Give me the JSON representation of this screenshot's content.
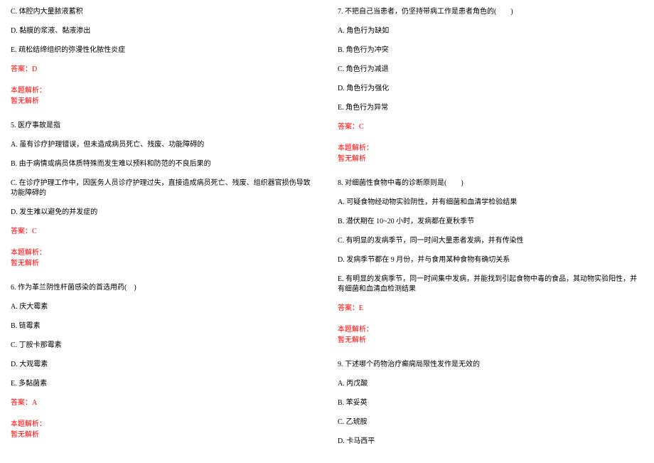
{
  "left_column": {
    "q4_tail": {
      "options": [
        "C. 体腔内大量脓液蓄积",
        "D. 黏膜的浆液、黏液渗出",
        "E. 疏松结缔组织的弥漫性化脓性炎症"
      ],
      "answer": "答案：D",
      "analysis_label": "本题解析：",
      "analysis_content": "暂无解析"
    },
    "q5": {
      "stem": "5. 医疗事故是指",
      "options": [
        "A. 虽有诊疗护理错误，但未造成病员死亡、残废、功能障碍的",
        "B. 由于病情或病员体质特殊而发生难以预料和防范的不良后果的",
        "C. 在诊疗护理工作中，因医务人员诊疗护理过失，直接造成病员死亡、残废、组织器官损伤导致功能障碍的",
        "D. 发生难以避免的并发症的"
      ],
      "answer": "答案：C",
      "analysis_label": "本题解析：",
      "analysis_content": "暂无解析"
    },
    "q6": {
      "stem": "6. 作为革兰阴性杆菌感染的首选用药(　)",
      "options": [
        "A. 庆大霉素",
        "B. 链霉素",
        "C. 丁胺卡那霉素",
        "D. 大观霉素",
        "E. 多黏菌素"
      ],
      "answer": "答案：A",
      "analysis_label": "本题解析：",
      "analysis_content": "暂无解析"
    }
  },
  "right_column": {
    "q7": {
      "stem": "7. 不把自己当患者，仍坚持带病工作是患者角色的(　　)",
      "options": [
        "A. 角色行为缺如",
        "B. 角色行为冲突",
        "C. 角色行为减退",
        "D. 角色行为强化",
        "E. 角色行为异常"
      ],
      "answer": "答案：C",
      "analysis_label": "本题解析：",
      "analysis_content": "暂无解析"
    },
    "q8": {
      "stem": "8. 对细菌性食物中毒的诊断原则是(　　)",
      "options": [
        "A. 可疑食物经动物实验阴性，并有细菌和血清学检验结果",
        "B. 潜伏期在 10~20 小时，发病都在夏秋季节",
        "C. 有明显的发病季节，同一时间大量患者发病，并有传染性",
        "D. 发病季节都在 9 月份，并与食用某种食物有确切关系",
        "E. 有明显的发病季节，同一时间集中发病，并能找到引起食物中毒的食品，其动物实验阳性，并有细菌和血清血检测结果"
      ],
      "answer": "答案：E",
      "analysis_label": "本题解析：",
      "analysis_content": "暂无解析"
    },
    "q9": {
      "stem": "9. 下述哪个药物治疗癫痫局限性发作是无效的",
      "options": [
        "A. 丙戊酸",
        "B. 苯妥英",
        "C. 乙琥胺",
        "D. 卡马西平"
      ]
    }
  }
}
